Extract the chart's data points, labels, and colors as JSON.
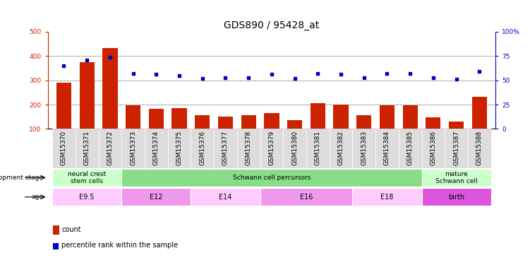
{
  "title": "GDS890 / 95428_at",
  "samples": [
    "GSM15370",
    "GSM15371",
    "GSM15372",
    "GSM15373",
    "GSM15374",
    "GSM15375",
    "GSM15376",
    "GSM15377",
    "GSM15378",
    "GSM15379",
    "GSM15380",
    "GSM15381",
    "GSM15382",
    "GSM15383",
    "GSM15384",
    "GSM15385",
    "GSM15386",
    "GSM15387",
    "GSM15388"
  ],
  "counts": [
    291,
    375,
    432,
    196,
    182,
    186,
    156,
    150,
    157,
    164,
    137,
    205,
    200,
    157,
    196,
    197,
    149,
    130,
    233
  ],
  "percentiles": [
    65,
    71,
    74,
    57,
    56,
    55,
    52,
    53,
    53,
    56,
    52,
    57,
    56,
    53,
    57,
    57,
    53,
    51,
    59
  ],
  "bar_color": "#cc2200",
  "dot_color": "#0000cc",
  "ylim_left": [
    100,
    500
  ],
  "ylim_right": [
    0,
    100
  ],
  "yticks_left": [
    100,
    200,
    300,
    400,
    500
  ],
  "yticks_right": [
    0,
    25,
    50,
    75,
    100
  ],
  "grid_values": [
    200,
    300,
    400
  ],
  "dev_stage_groups": [
    {
      "label": "neural crest\nstem cells",
      "start": 0,
      "end": 3,
      "color": "#ccffcc"
    },
    {
      "label": "Schwann cell percursors",
      "start": 3,
      "end": 16,
      "color": "#88dd88"
    },
    {
      "label": "mature\nSchwann cell",
      "start": 16,
      "end": 19,
      "color": "#ccffcc"
    }
  ],
  "age_groups": [
    {
      "label": "E9.5",
      "start": 0,
      "end": 3,
      "color": "#ffccff"
    },
    {
      "label": "E12",
      "start": 3,
      "end": 6,
      "color": "#ee99ee"
    },
    {
      "label": "E14",
      "start": 6,
      "end": 9,
      "color": "#ffccff"
    },
    {
      "label": "E16",
      "start": 9,
      "end": 13,
      "color": "#ee99ee"
    },
    {
      "label": "E18",
      "start": 13,
      "end": 16,
      "color": "#ffccff"
    },
    {
      "label": "birth",
      "start": 16,
      "end": 19,
      "color": "#dd55dd"
    }
  ],
  "dev_label": "development stage",
  "age_label": "age",
  "legend_count_label": "count",
  "legend_pct_label": "percentile rank within the sample",
  "bar_width": 0.65,
  "plot_bg": "#ffffff",
  "xtick_bg": "#dddddd",
  "title_fontsize": 10,
  "tick_fontsize": 6.5,
  "label_fontsize": 7.5
}
